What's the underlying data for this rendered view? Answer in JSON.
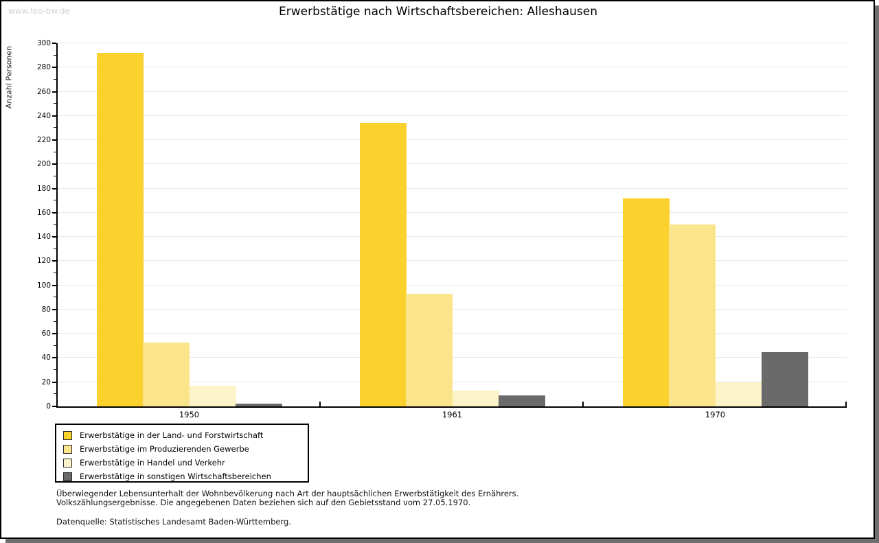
{
  "watermark": "www.leo-bw.de",
  "header": {
    "title": "Erwerbstätige nach Wirtschaftsbereichen: Alleshausen"
  },
  "chart_data": {
    "type": "bar",
    "title": "Erwerbstätige nach Wirtschaftsbereichen: Alleshausen",
    "xlabel": "",
    "ylabel": "Anzahl Personen",
    "categories": [
      "1950",
      "1961",
      "1970"
    ],
    "series": [
      {
        "name": "Erwerbstätige in der Land- und Forstwirtschaft",
        "color": "#FBD12E",
        "values": [
          292,
          234,
          172
        ]
      },
      {
        "name": "Erwerbstätige im Produzierenden Gewerbe",
        "color": "#FBE58C",
        "values": [
          53,
          93,
          150
        ]
      },
      {
        "name": "Erwerbstätige in Handel und Verkehr",
        "color": "#FDF3C8",
        "values": [
          17,
          13,
          20
        ]
      },
      {
        "name": "Erwerbstätige in sonstigen Wirtschaftsbereichen",
        "color": "#6A6A6A",
        "values": [
          2,
          9,
          45
        ]
      }
    ],
    "ylim": [
      0,
      300
    ],
    "ytick_step": 20,
    "ytick_minor_step": 10,
    "grid": true,
    "gridline_color": "#e8e8e8",
    "legend_position": "bottom-left"
  },
  "footnotes": {
    "line1": "Überwiegender Lebensunterhalt der Wohnbevölkerung nach Art der hauptsächlichen Erwerbstätigkeit des Ernährers.",
    "line2": "Volkszählungsergebnisse. Die angegebenen Daten beziehen sich auf den Gebietsstand vom 27.05.1970.",
    "source": "Datenquelle: Statistisches Landesamt Baden-Württemberg."
  }
}
